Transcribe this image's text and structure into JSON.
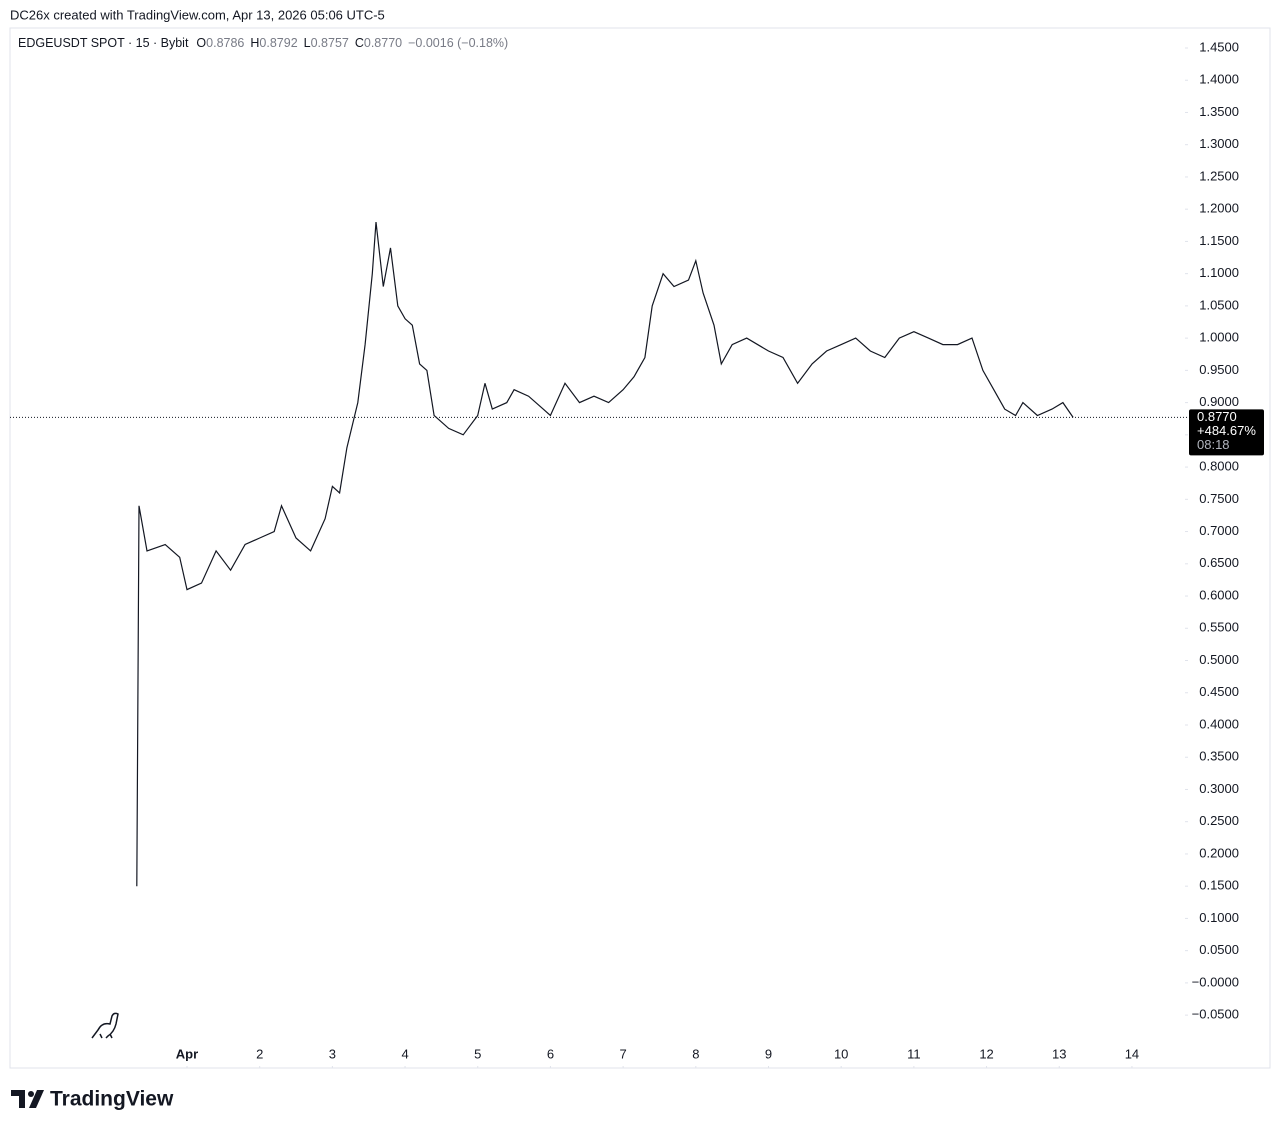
{
  "header": "DC26x created with TradingView.com, Apr 13, 2026 05:06 UTC-5",
  "brand": "TradingView",
  "chart_data": {
    "type": "line",
    "legend": [
      {
        "key": "O",
        "value": "0.8786"
      },
      {
        "key": "H",
        "value": "0.8792"
      },
      {
        "key": "L",
        "value": "0.8757"
      },
      {
        "key": "C",
        "value": "0.8770"
      }
    ],
    "change": "−0.0016 (−0.18%)",
    "x": [
      0.31,
      0.34,
      0.45,
      0.7,
      0.9,
      1.0,
      1.2,
      1.4,
      1.6,
      1.8,
      2.0,
      2.2,
      2.3,
      2.5,
      2.7,
      2.9,
      3.0,
      3.1,
      3.2,
      3.35,
      3.45,
      3.55,
      3.6,
      3.7,
      3.8,
      3.9,
      4.0,
      4.1,
      4.2,
      4.3,
      4.4,
      4.6,
      4.8,
      5.0,
      5.1,
      5.2,
      5.4,
      5.5,
      5.7,
      5.9,
      6.0,
      6.2,
      6.4,
      6.6,
      6.8,
      7.0,
      7.15,
      7.3,
      7.4,
      7.55,
      7.7,
      7.9,
      8.0,
      8.1,
      8.25,
      8.35,
      8.5,
      8.7,
      9.0,
      9.2,
      9.4,
      9.6,
      9.8,
      10.0,
      10.2,
      10.4,
      10.6,
      10.8,
      11.0,
      11.2,
      11.4,
      11.6,
      11.8,
      11.95,
      12.1,
      12.25,
      12.4,
      12.5,
      12.7,
      12.9,
      13.05,
      13.19
    ],
    "series": [
      {
        "name": "EDGEUSDT SPOT · 15 · Bybit",
        "color": "#131722",
        "values": [
          0.15,
          0.74,
          0.67,
          0.68,
          0.66,
          0.61,
          0.62,
          0.67,
          0.64,
          0.68,
          0.69,
          0.7,
          0.74,
          0.69,
          0.67,
          0.72,
          0.77,
          0.76,
          0.83,
          0.9,
          0.99,
          1.1,
          1.18,
          1.08,
          1.14,
          1.05,
          1.03,
          1.02,
          0.96,
          0.95,
          0.88,
          0.86,
          0.85,
          0.88,
          0.93,
          0.89,
          0.9,
          0.92,
          0.91,
          0.89,
          0.88,
          0.93,
          0.9,
          0.91,
          0.9,
          0.92,
          0.94,
          0.97,
          1.05,
          1.1,
          1.08,
          1.09,
          1.12,
          1.07,
          1.02,
          0.96,
          0.99,
          1.0,
          0.98,
          0.97,
          0.93,
          0.96,
          0.98,
          0.99,
          1.0,
          0.98,
          0.97,
          1.0,
          1.01,
          1.0,
          0.99,
          0.99,
          1.0,
          0.95,
          0.92,
          0.89,
          0.88,
          0.9,
          0.88,
          0.89,
          0.9,
          0.877
        ]
      }
    ],
    "last_price": {
      "value": 0.877,
      "label": "0.8770"
    },
    "change_label": "+484.67%",
    "countdown": "08:18",
    "xlim": [
      -1.435,
      14.73
    ],
    "xticks": [
      {
        "value": 1,
        "label": "Apr"
      },
      2,
      3,
      4,
      5,
      6,
      7,
      8,
      9,
      10,
      11,
      12,
      13,
      14
    ],
    "ylim": [
      -0.132,
      1.481
    ],
    "yticks": [
      {
        "value": 1.45,
        "label": "1.4500"
      },
      {
        "value": 1.4,
        "label": "1.4000"
      },
      {
        "value": 1.35,
        "label": "1.3500"
      },
      {
        "value": 1.3,
        "label": "1.3000"
      },
      {
        "value": 1.25,
        "label": "1.2500"
      },
      {
        "value": 1.2,
        "label": "1.2000"
      },
      {
        "value": 1.15,
        "label": "1.1500"
      },
      {
        "value": 1.1,
        "label": "1.1000"
      },
      {
        "value": 1.05,
        "label": "1.0500"
      },
      {
        "value": 1.0,
        "label": "1.0000"
      },
      {
        "value": 0.95,
        "label": "0.9500"
      },
      {
        "value": 0.9,
        "label": "0.9000"
      },
      {
        "value": 0.85,
        "label": "0.8500"
      },
      {
        "value": 0.8,
        "label": "0.8000"
      },
      {
        "value": 0.75,
        "label": "0.7500"
      },
      {
        "value": 0.7,
        "label": "0.7000"
      },
      {
        "value": 0.65,
        "label": "0.6500"
      },
      {
        "value": 0.6,
        "label": "0.6000"
      },
      {
        "value": 0.55,
        "label": "0.5500"
      },
      {
        "value": 0.5,
        "label": "0.5000"
      },
      {
        "value": 0.45,
        "label": "0.4500"
      },
      {
        "value": 0.4,
        "label": "0.4000"
      },
      {
        "value": 0.35,
        "label": "0.3500"
      },
      {
        "value": 0.3,
        "label": "0.3000"
      },
      {
        "value": 0.25,
        "label": "0.2500"
      },
      {
        "value": 0.2,
        "label": "0.2000"
      },
      {
        "value": 0.15,
        "label": "0.1500"
      },
      {
        "value": 0.1,
        "label": "0.1000"
      },
      {
        "value": 0.05,
        "label": "0.0500"
      },
      {
        "value": 0,
        "label": "−0.0000"
      },
      {
        "value": -0.05,
        "label": "−0.0500"
      }
    ],
    "grid": false
  }
}
